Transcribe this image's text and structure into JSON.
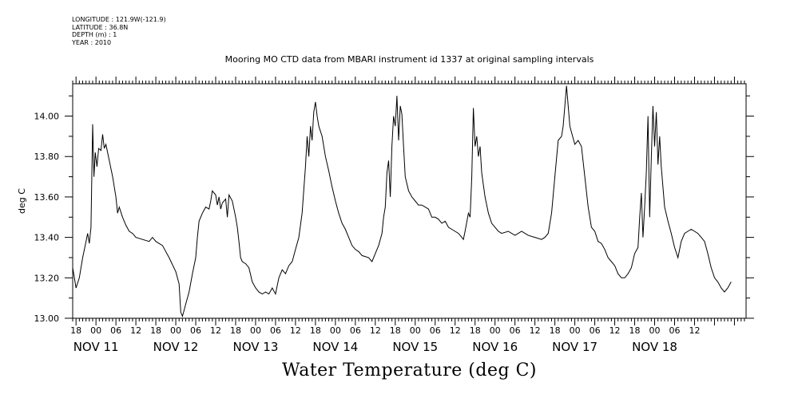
{
  "header_info": {
    "longitude": "LONGITUDE : 121.9W(-121.9)",
    "latitude": "LATITUDE : 36.8N",
    "depth": "DEPTH (m) : 1",
    "year": "YEAR : 2010"
  },
  "chart_data": {
    "type": "line",
    "title": "Mooring MO CTD data from MBARI instrument id 1337 at original sampling intervals",
    "xlabel": "Water Temperature (deg C)",
    "ylabel": "deg C",
    "ylim": [
      13.0,
      14.16
    ],
    "yticks": [
      "13.00",
      "13.20",
      "13.40",
      "13.60",
      "13.80",
      "14.00"
    ],
    "xlim_hours": [
      -7,
      195.5
    ],
    "x_unit": "hours since NOV 11 00:00",
    "hour_labels": [
      "18",
      "00",
      "06",
      "12",
      "18",
      "00",
      "06",
      "12",
      "18",
      "00",
      "06",
      "12",
      "18",
      "00",
      "06",
      "12",
      "18",
      "00",
      "06",
      "12",
      "18",
      "00",
      "06",
      "12",
      "18",
      "00",
      "06",
      "12",
      "18",
      "00",
      "06",
      "12"
    ],
    "day_labels": [
      "NOV 11",
      "NOV 12",
      "NOV 13",
      "NOV 14",
      "NOV 15",
      "NOV 16",
      "NOV 17",
      "NOV 18"
    ],
    "series": [
      {
        "color": "#000000",
        "points": [
          [
            -7,
            13.25
          ],
          [
            -6,
            13.15
          ],
          [
            -5,
            13.2
          ],
          [
            -4,
            13.3
          ],
          [
            -3,
            13.38
          ],
          [
            -2.5,
            13.42
          ],
          [
            -2,
            13.37
          ],
          [
            -1.5,
            13.45
          ],
          [
            -1,
            13.96
          ],
          [
            -0.6,
            13.7
          ],
          [
            -0.2,
            13.82
          ],
          [
            0.3,
            13.75
          ],
          [
            0.8,
            13.84
          ],
          [
            1.5,
            13.83
          ],
          [
            2,
            13.91
          ],
          [
            2.5,
            13.84
          ],
          [
            3,
            13.86
          ],
          [
            4,
            13.78
          ],
          [
            5,
            13.7
          ],
          [
            6,
            13.6
          ],
          [
            6.5,
            13.52
          ],
          [
            7,
            13.55
          ],
          [
            8,
            13.5
          ],
          [
            9,
            13.46
          ],
          [
            10,
            13.43
          ],
          [
            11,
            13.42
          ],
          [
            12,
            13.4
          ],
          [
            14,
            13.39
          ],
          [
            16,
            13.38
          ],
          [
            17,
            13.4
          ],
          [
            18,
            13.38
          ],
          [
            20,
            13.36
          ],
          [
            22,
            13.3
          ],
          [
            24,
            13.23
          ],
          [
            25,
            13.17
          ],
          [
            25.5,
            13.03
          ],
          [
            26,
            13.01
          ],
          [
            26.5,
            13.04
          ],
          [
            27,
            13.07
          ],
          [
            28,
            13.13
          ],
          [
            29,
            13.22
          ],
          [
            30,
            13.3
          ],
          [
            30.5,
            13.4
          ],
          [
            31,
            13.48
          ],
          [
            32,
            13.52
          ],
          [
            33,
            13.55
          ],
          [
            34,
            13.54
          ],
          [
            34.5,
            13.58
          ],
          [
            35,
            13.63
          ],
          [
            36,
            13.61
          ],
          [
            36.5,
            13.56
          ],
          [
            37,
            13.6
          ],
          [
            37.5,
            13.54
          ],
          [
            38,
            13.57
          ],
          [
            39,
            13.59
          ],
          [
            39.5,
            13.5
          ],
          [
            40,
            13.61
          ],
          [
            41,
            13.58
          ],
          [
            42,
            13.5
          ],
          [
            42.5,
            13.45
          ],
          [
            43,
            13.38
          ],
          [
            43.5,
            13.3
          ],
          [
            44,
            13.28
          ],
          [
            45,
            13.27
          ],
          [
            46,
            13.25
          ],
          [
            47,
            13.18
          ],
          [
            48,
            13.15
          ],
          [
            49,
            13.13
          ],
          [
            50,
            13.12
          ],
          [
            51,
            13.13
          ],
          [
            52,
            13.12
          ],
          [
            53,
            13.15
          ],
          [
            54,
            13.12
          ],
          [
            55,
            13.2
          ],
          [
            56,
            13.24
          ],
          [
            57,
            13.22
          ],
          [
            58,
            13.26
          ],
          [
            59,
            13.28
          ],
          [
            60,
            13.34
          ],
          [
            61,
            13.4
          ],
          [
            62,
            13.52
          ],
          [
            63,
            13.75
          ],
          [
            63.5,
            13.9
          ],
          [
            64,
            13.8
          ],
          [
            64.5,
            13.95
          ],
          [
            65,
            13.88
          ],
          [
            65.5,
            14.02
          ],
          [
            66,
            14.07
          ],
          [
            66.5,
            14.0
          ],
          [
            67,
            13.95
          ],
          [
            68,
            13.9
          ],
          [
            69,
            13.8
          ],
          [
            70,
            13.73
          ],
          [
            71,
            13.65
          ],
          [
            72,
            13.58
          ],
          [
            73,
            13.52
          ],
          [
            74,
            13.47
          ],
          [
            75,
            13.44
          ],
          [
            76,
            13.4
          ],
          [
            77,
            13.36
          ],
          [
            78,
            13.34
          ],
          [
            79,
            13.33
          ],
          [
            80,
            13.31
          ],
          [
            82,
            13.3
          ],
          [
            83,
            13.28
          ],
          [
            84,
            13.32
          ],
          [
            85,
            13.36
          ],
          [
            86,
            13.42
          ],
          [
            86.5,
            13.5
          ],
          [
            87,
            13.55
          ],
          [
            87.5,
            13.72
          ],
          [
            88,
            13.78
          ],
          [
            88.5,
            13.6
          ],
          [
            89,
            13.85
          ],
          [
            89.5,
            14.0
          ],
          [
            90,
            13.95
          ],
          [
            90.5,
            14.1
          ],
          [
            91,
            13.88
          ],
          [
            91.5,
            14.05
          ],
          [
            92,
            14.01
          ],
          [
            92.5,
            13.85
          ],
          [
            93,
            13.7
          ],
          [
            94,
            13.63
          ],
          [
            95,
            13.6
          ],
          [
            96,
            13.58
          ],
          [
            97,
            13.56
          ],
          [
            98,
            13.56
          ],
          [
            99,
            13.55
          ],
          [
            100,
            13.54
          ],
          [
            101,
            13.5
          ],
          [
            102,
            13.5
          ],
          [
            103,
            13.49
          ],
          [
            104,
            13.47
          ],
          [
            105,
            13.48
          ],
          [
            106,
            13.45
          ],
          [
            107,
            13.44
          ],
          [
            108,
            13.43
          ],
          [
            109,
            13.42
          ],
          [
            110,
            13.4
          ],
          [
            110.5,
            13.39
          ],
          [
            111,
            13.43
          ],
          [
            112,
            13.52
          ],
          [
            112.5,
            13.5
          ],
          [
            113,
            13.7
          ],
          [
            113.5,
            14.04
          ],
          [
            114,
            13.85
          ],
          [
            114.5,
            13.9
          ],
          [
            115,
            13.8
          ],
          [
            115.5,
            13.85
          ],
          [
            116,
            13.72
          ],
          [
            117,
            13.6
          ],
          [
            118,
            13.52
          ],
          [
            119,
            13.47
          ],
          [
            120,
            13.45
          ],
          [
            121,
            13.43
          ],
          [
            122,
            13.42
          ],
          [
            124,
            13.43
          ],
          [
            126,
            13.41
          ],
          [
            128,
            13.43
          ],
          [
            130,
            13.41
          ],
          [
            132,
            13.4
          ],
          [
            134,
            13.39
          ],
          [
            135,
            13.4
          ],
          [
            136,
            13.42
          ],
          [
            137,
            13.52
          ],
          [
            138,
            13.7
          ],
          [
            139,
            13.88
          ],
          [
            140,
            13.9
          ],
          [
            140.5,
            13.95
          ],
          [
            141,
            14.05
          ],
          [
            141.5,
            14.15
          ],
          [
            142,
            14.05
          ],
          [
            142.5,
            13.95
          ],
          [
            143,
            13.92
          ],
          [
            144,
            13.86
          ],
          [
            145,
            13.88
          ],
          [
            146,
            13.85
          ],
          [
            147,
            13.7
          ],
          [
            148,
            13.55
          ],
          [
            149,
            13.45
          ],
          [
            150,
            13.43
          ],
          [
            151,
            13.38
          ],
          [
            152,
            13.37
          ],
          [
            153,
            13.34
          ],
          [
            154,
            13.3
          ],
          [
            155,
            13.28
          ],
          [
            156,
            13.26
          ],
          [
            157,
            13.22
          ],
          [
            158,
            13.2
          ],
          [
            159,
            13.2
          ],
          [
            160,
            13.22
          ],
          [
            161,
            13.25
          ],
          [
            162,
            13.32
          ],
          [
            163,
            13.35
          ],
          [
            163.5,
            13.5
          ],
          [
            164,
            13.62
          ],
          [
            164.5,
            13.4
          ],
          [
            165,
            13.55
          ],
          [
            165.5,
            13.72
          ],
          [
            166,
            14.0
          ],
          [
            166.5,
            13.5
          ],
          [
            167,
            13.8
          ],
          [
            167.5,
            14.05
          ],
          [
            168,
            13.85
          ],
          [
            168.5,
            14.02
          ],
          [
            169,
            13.76
          ],
          [
            169.5,
            13.9
          ],
          [
            170,
            13.75
          ],
          [
            171,
            13.55
          ],
          [
            172,
            13.48
          ],
          [
            173,
            13.42
          ],
          [
            174,
            13.35
          ],
          [
            175,
            13.3
          ],
          [
            176,
            13.38
          ],
          [
            177,
            13.42
          ],
          [
            178,
            13.43
          ],
          [
            179,
            13.44
          ],
          [
            180,
            13.43
          ],
          [
            181,
            13.42
          ],
          [
            182,
            13.4
          ],
          [
            183,
            13.38
          ],
          [
            184,
            13.32
          ],
          [
            185,
            13.25
          ],
          [
            186,
            13.2
          ],
          [
            187,
            13.18
          ],
          [
            188,
            13.15
          ],
          [
            189,
            13.13
          ],
          [
            190,
            13.15
          ],
          [
            191,
            13.18
          ]
        ]
      }
    ]
  }
}
